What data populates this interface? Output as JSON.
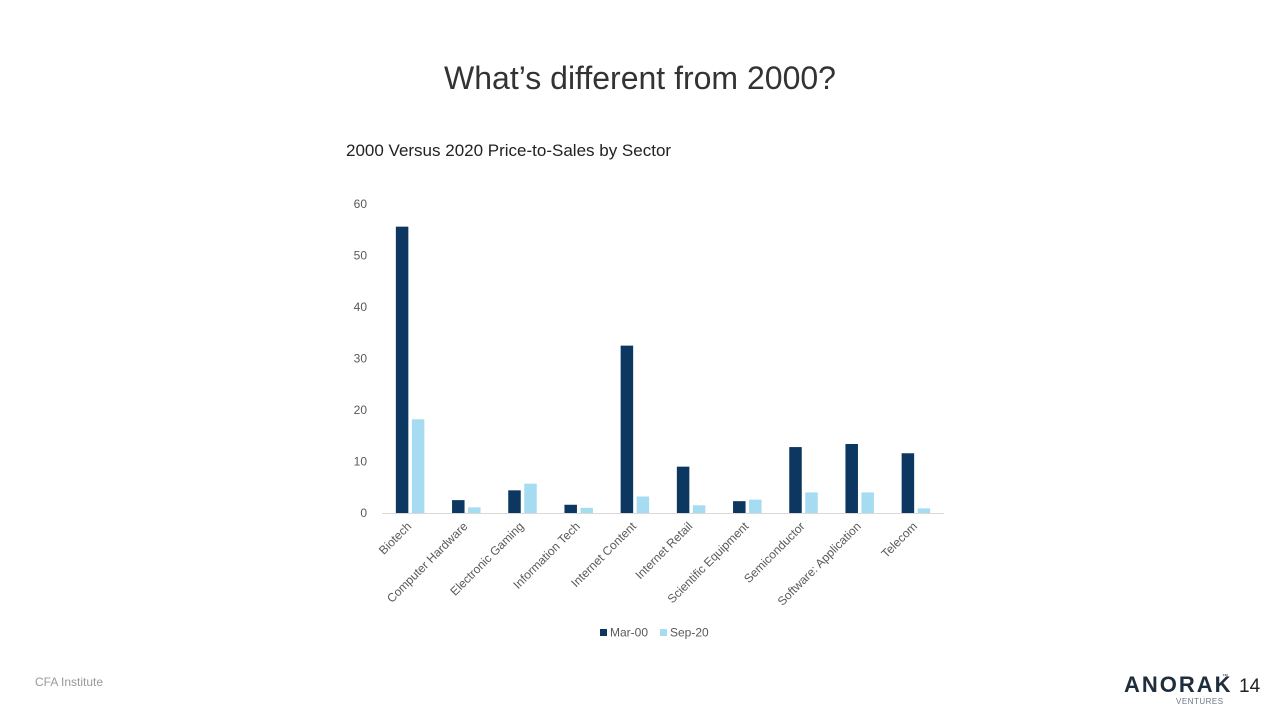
{
  "slide": {
    "title": "What’s different from 2000?",
    "source": "CFA Institute",
    "page_number": "14",
    "logo": {
      "wordmark": "ANORAK",
      "trademark": "™",
      "subtitle": "VENTURES"
    }
  },
  "colors": {
    "series_dark": "#0b3761",
    "series_light": "#a6dcf2",
    "axis": "#d9d9d9",
    "tick_text": "#595959"
  },
  "chart_data": {
    "type": "bar",
    "title": "2000 Versus 2020 Price-to-Sales by Sector",
    "xlabel": "",
    "ylabel": "",
    "ylim": [
      0,
      60
    ],
    "yticks": [
      0,
      10,
      20,
      30,
      40,
      50,
      60
    ],
    "grid": false,
    "legend": "bottom",
    "categories": [
      "Biotech",
      "Computer Hardware",
      "Electronic Gaming",
      "Information Tech",
      "Internet Content",
      "Internet Retail",
      "Scientific Equipment",
      "Semiconductor",
      "Software: Application",
      "Telecom"
    ],
    "series": [
      {
        "name": "Mar-00",
        "values": [
          55.6,
          2.5,
          4.4,
          1.6,
          32.5,
          9.0,
          2.3,
          12.8,
          13.4,
          11.6
        ]
      },
      {
        "name": "Sep-20",
        "values": [
          18.2,
          1.1,
          5.7,
          1.0,
          3.2,
          1.5,
          2.6,
          4.0,
          4.0,
          0.9
        ]
      }
    ]
  }
}
